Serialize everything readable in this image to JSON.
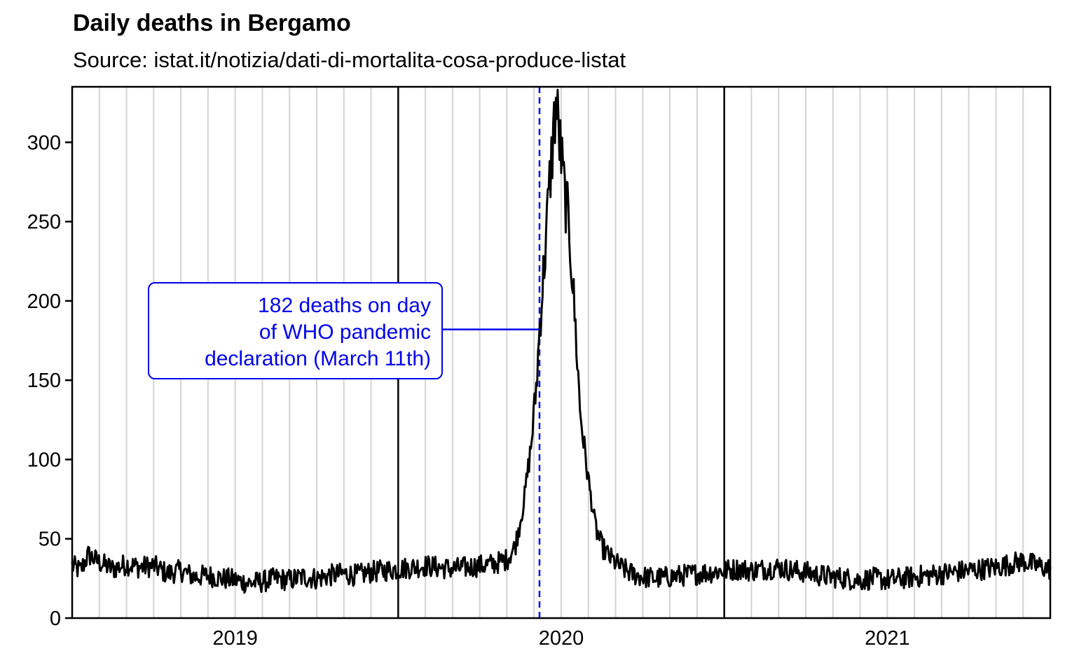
{
  "chart_data": {
    "type": "line",
    "title": "Daily deaths in Bergamo",
    "subtitle": "Source: istat.it/notizia/dati-di-mortalita-cosa-produce-listat",
    "xlabel": "",
    "ylabel": "",
    "ylim": [
      0,
      335
    ],
    "yticks": [
      0,
      50,
      100,
      150,
      200,
      250,
      300
    ],
    "x_range_months": [
      0,
      36
    ],
    "x_labels": [
      {
        "label": "2019",
        "month_center": 6
      },
      {
        "label": "2020",
        "month_center": 18
      },
      {
        "label": "2021",
        "month_center": 30
      }
    ],
    "year_boundaries_months": [
      12,
      24
    ],
    "month_gridlines": true,
    "series": [
      {
        "name": "Daily deaths",
        "color": "#000000",
        "points": [
          [
            0,
            33
          ],
          [
            0.3,
            30
          ],
          [
            0.6,
            40
          ],
          [
            1,
            35
          ],
          [
            1.5,
            31
          ],
          [
            2,
            34
          ],
          [
            2.5,
            32
          ],
          [
            3,
            33
          ],
          [
            3.5,
            28
          ],
          [
            4,
            30
          ],
          [
            4.5,
            26
          ],
          [
            5,
            27
          ],
          [
            5.5,
            25
          ],
          [
            6,
            24
          ],
          [
            6.5,
            22
          ],
          [
            7,
            23
          ],
          [
            7.5,
            25
          ],
          [
            8,
            24
          ],
          [
            8.5,
            26
          ],
          [
            9,
            25
          ],
          [
            9.5,
            27
          ],
          [
            10,
            28
          ],
          [
            10.5,
            27
          ],
          [
            11,
            29
          ],
          [
            11.5,
            30
          ],
          [
            12,
            31
          ],
          [
            12.5,
            32
          ],
          [
            13,
            33
          ],
          [
            13.5,
            32
          ],
          [
            14,
            31
          ],
          [
            14.5,
            32
          ],
          [
            15,
            33
          ],
          [
            15.5,
            34
          ],
          [
            16,
            37
          ],
          [
            16.3,
            45
          ],
          [
            16.6,
            70
          ],
          [
            16.9,
            110
          ],
          [
            17.1,
            150
          ],
          [
            17.2,
            182
          ],
          [
            17.4,
            230
          ],
          [
            17.6,
            280
          ],
          [
            17.8,
            325
          ],
          [
            17.95,
            300
          ],
          [
            18.1,
            272
          ],
          [
            18.3,
            245
          ],
          [
            18.5,
            190
          ],
          [
            18.7,
            130
          ],
          [
            18.9,
            100
          ],
          [
            19.1,
            75
          ],
          [
            19.3,
            55
          ],
          [
            19.5,
            45
          ],
          [
            19.8,
            38
          ],
          [
            20.2,
            32
          ],
          [
            20.6,
            28
          ],
          [
            21,
            26
          ],
          [
            21.5,
            25
          ],
          [
            22,
            26
          ],
          [
            22.5,
            27
          ],
          [
            23,
            28
          ],
          [
            23.5,
            29
          ],
          [
            24,
            30
          ],
          [
            24.5,
            31
          ],
          [
            25,
            30
          ],
          [
            25.5,
            31
          ],
          [
            26,
            32
          ],
          [
            26.5,
            30
          ],
          [
            27,
            29
          ],
          [
            27.5,
            27
          ],
          [
            28,
            26
          ],
          [
            28.5,
            25
          ],
          [
            29,
            24
          ],
          [
            29.5,
            25
          ],
          [
            30,
            24
          ],
          [
            30.5,
            25
          ],
          [
            31,
            26
          ],
          [
            31.5,
            27
          ],
          [
            32,
            28
          ],
          [
            32.5,
            29
          ],
          [
            33,
            30
          ],
          [
            33.5,
            31
          ],
          [
            34,
            32
          ],
          [
            34.5,
            34
          ],
          [
            35,
            36
          ],
          [
            35.5,
            33
          ],
          [
            36,
            31
          ]
        ]
      }
    ],
    "reference_line": {
      "x_month": 17.2,
      "value": 182,
      "color": "#0000ee",
      "style": "dashed"
    },
    "annotation": {
      "lines": [
        "182 deaths on day",
        "of WHO pandemic",
        "declaration (March 11th)"
      ],
      "color": "#0000ee",
      "points_to_month": 17.2,
      "points_to_value": 182
    }
  }
}
